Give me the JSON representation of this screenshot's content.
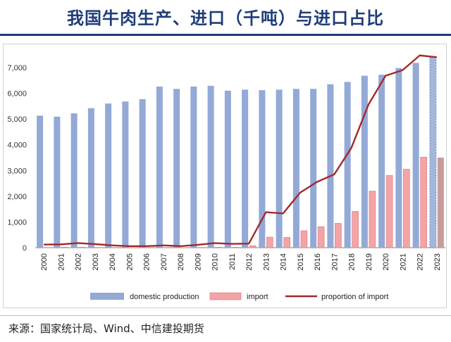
{
  "title": "我国牛肉生产、进口（千吨）与进口占比",
  "source": "来源：国家统计局、Wind、中信建投期货",
  "colors": {
    "title": "#1f3c7a",
    "domestic": "#93a9d6",
    "import": "#f4a3a6",
    "import_last": "#c99a9a",
    "proportion": "#a3292c"
  },
  "chart_data": {
    "type": "bar",
    "categories": [
      "2000",
      "2001",
      "2002",
      "2003",
      "2004",
      "2005",
      "2006",
      "2007",
      "2008",
      "2009",
      "2010",
      "2011",
      "2012",
      "2013",
      "2014",
      "2015",
      "2016",
      "2017",
      "2018",
      "2019",
      "2020",
      "2021",
      "2022",
      "2023"
    ],
    "series": [
      {
        "name": "domestic production",
        "type": "bar",
        "values": [
          5130,
          5090,
          5220,
          5420,
          5600,
          5680,
          5770,
          6260,
          6170,
          6260,
          6290,
          6100,
          6140,
          6120,
          6140,
          6170,
          6170,
          6350,
          6440,
          6680,
          6720,
          6980,
          7180,
          7400
        ]
      },
      {
        "name": "import",
        "type": "bar",
        "values": [
          10,
          20,
          20,
          10,
          10,
          5,
          10,
          10,
          5,
          10,
          20,
          20,
          80,
          410,
          400,
          660,
          820,
          950,
          1410,
          2200,
          2810,
          3050,
          3520,
          3500
        ]
      },
      {
        "name": "proportion of import",
        "type": "line",
        "values": [
          120,
          130,
          180,
          140,
          90,
          60,
          60,
          90,
          60,
          110,
          180,
          150,
          160,
          1380,
          1330,
          2140,
          2560,
          2850,
          3880,
          5560,
          6680,
          6900,
          7470,
          7400
        ]
      }
    ],
    "y_ticks": [
      "0",
      "1,000",
      "2,000",
      "3,000",
      "4,000",
      "5,000",
      "6,000",
      "7,000"
    ],
    "ylim": [
      0,
      7600
    ],
    "legend_position": "bottom",
    "grid": false
  }
}
